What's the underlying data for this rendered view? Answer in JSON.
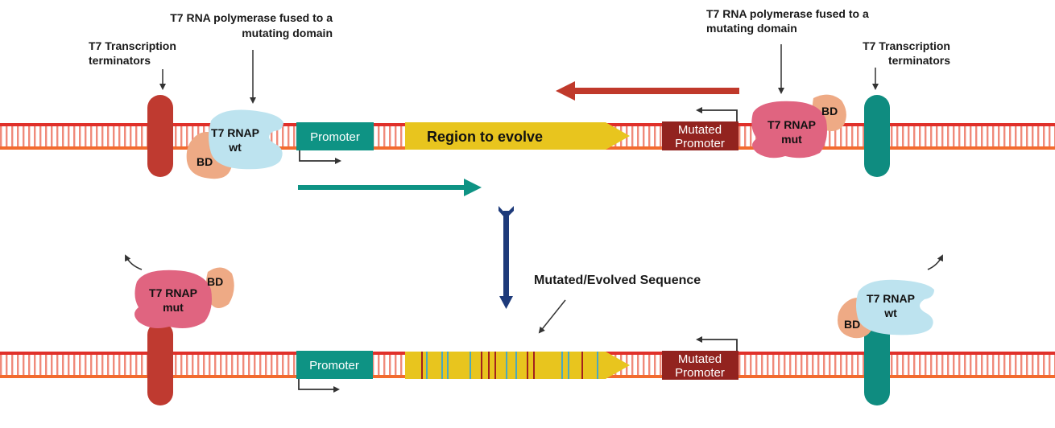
{
  "colors": {
    "dna_top": "#e0302a",
    "dna_bottom": "#f26b2e",
    "terminator_left": "#bf3a30",
    "terminator_right": "#0f8c80",
    "promoter": "#0e9384",
    "mutated_promoter": "#92231f",
    "region": "#e8c51e",
    "rnap_wt": "#bde3ef",
    "rnap_mut": "#e06480",
    "bd": "#eeaa85",
    "evolve_arrow": "#1d3a7a",
    "mutation_red": "#a3221e",
    "mutation_blue": "#4aa8c0"
  },
  "labels": {
    "left_polymerase": [
      "T7 RNA polymerase fused to a",
      "mutating domain"
    ],
    "left_terminators": [
      "T7 Transcription",
      "terminators"
    ],
    "right_polymerase": [
      "T7 RNA polymerase fused to a",
      "mutating domain"
    ],
    "right_terminators": [
      "T7 Transcription",
      "terminators"
    ],
    "mutated_sequence": "Mutated/Evolved Sequence"
  },
  "top": {
    "promoter": "Promoter",
    "region": "Region to evolve",
    "mutated_promoter": [
      "Mutated",
      "Promoter"
    ],
    "rnap_wt": [
      "T7 RNAP",
      "wt"
    ],
    "rnap_mut": [
      "T7 RNAP",
      "mut"
    ],
    "bd": "BD"
  },
  "bottom": {
    "promoter": "Promoter",
    "mutated_promoter": [
      "Mutated",
      "Promoter"
    ],
    "rnap_wt": [
      "T7 RNAP",
      "wt"
    ],
    "rnap_mut": [
      "T7 RNAP",
      "mut"
    ],
    "bd": "BD"
  }
}
